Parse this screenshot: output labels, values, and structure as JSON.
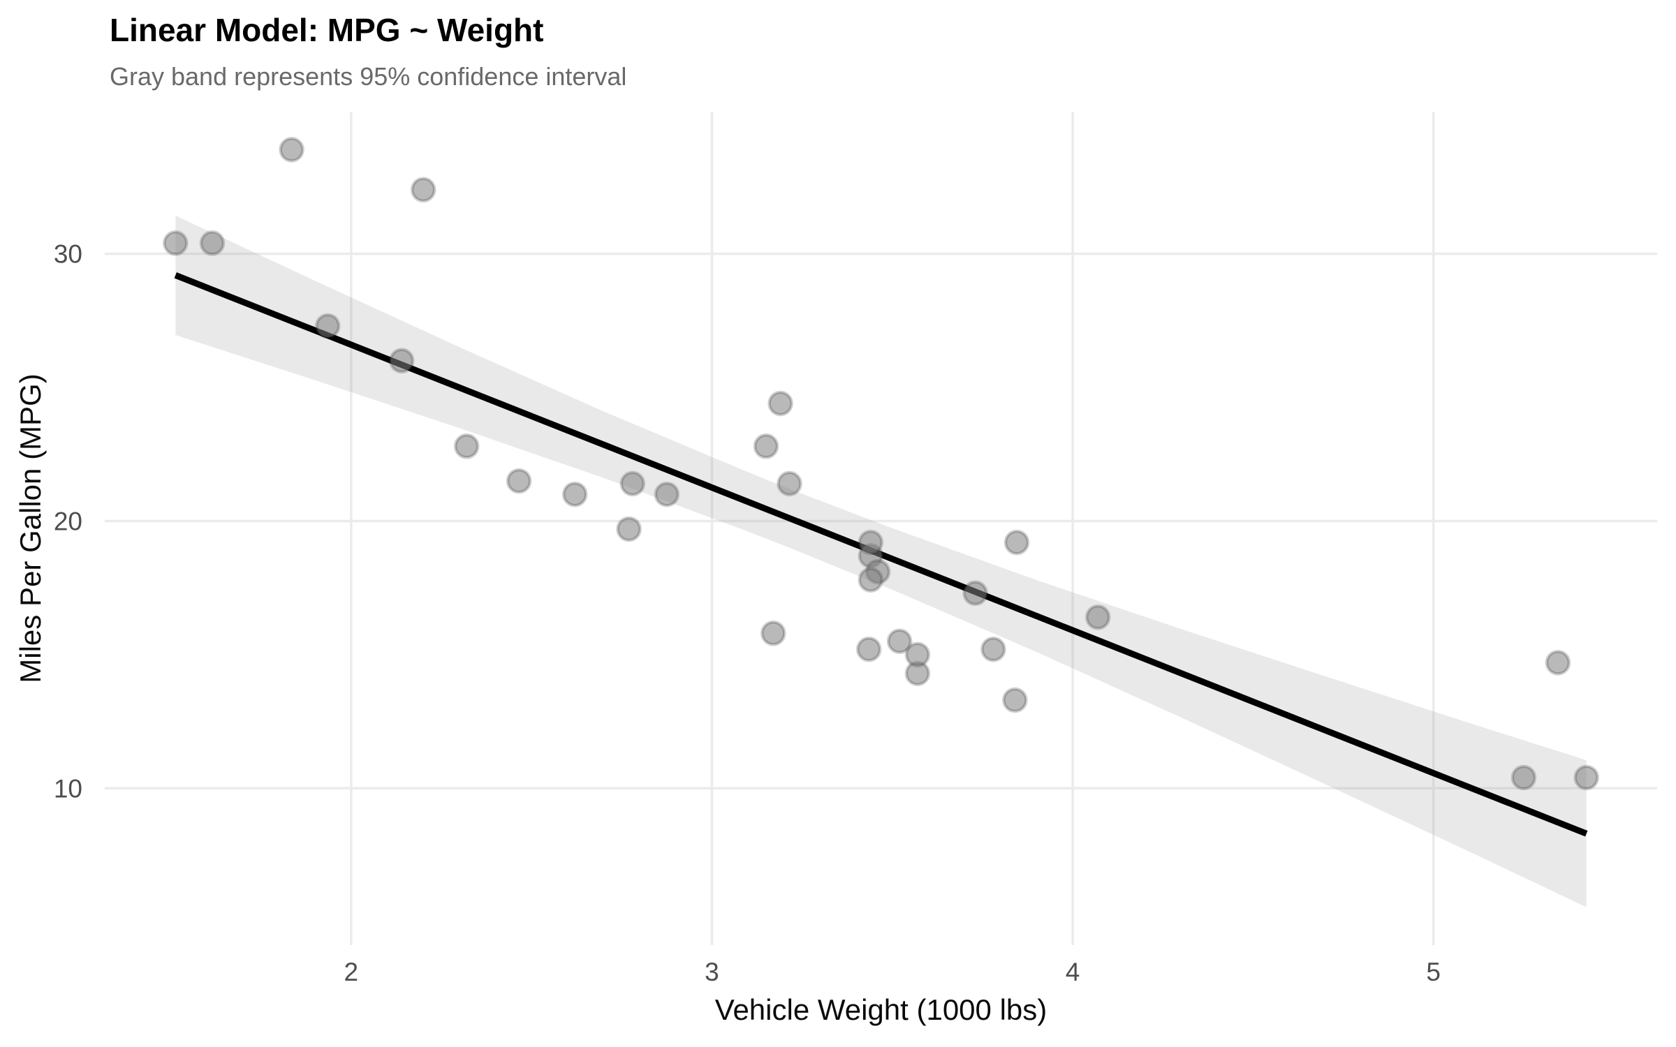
{
  "title": "Linear Model: MPG ~ Weight",
  "subtitle": "Gray band represents 95% confidence interval",
  "chart_data": {
    "type": "scatter",
    "title": "Linear Model: MPG ~ Weight",
    "subtitle": "Gray band represents 95% confidence interval",
    "xlabel": "Vehicle Weight (1000 lbs)",
    "ylabel": "Miles Per Gallon (MPG)",
    "xlim": [
      1.317,
      5.62
    ],
    "ylim": [
      4.13,
      35.32
    ],
    "x_ticks": [
      2,
      3,
      4,
      5
    ],
    "y_ticks": [
      10,
      20,
      30
    ],
    "grid": "major-only",
    "legend": "none",
    "points": [
      [
        2.62,
        21.0
      ],
      [
        2.875,
        21.0
      ],
      [
        2.32,
        22.8
      ],
      [
        3.215,
        21.4
      ],
      [
        3.44,
        18.7
      ],
      [
        3.46,
        18.1
      ],
      [
        3.57,
        14.3
      ],
      [
        3.19,
        24.4
      ],
      [
        3.15,
        22.8
      ],
      [
        3.44,
        19.2
      ],
      [
        3.44,
        17.8
      ],
      [
        4.07,
        16.4
      ],
      [
        3.73,
        17.3
      ],
      [
        3.78,
        15.2
      ],
      [
        5.25,
        10.4
      ],
      [
        5.424,
        10.4
      ],
      [
        5.345,
        14.7
      ],
      [
        2.2,
        32.4
      ],
      [
        1.615,
        30.4
      ],
      [
        1.835,
        33.9
      ],
      [
        2.465,
        21.5
      ],
      [
        3.52,
        15.5
      ],
      [
        3.435,
        15.2
      ],
      [
        3.84,
        13.3
      ],
      [
        3.845,
        19.2
      ],
      [
        1.935,
        27.3
      ],
      [
        2.14,
        26.0
      ],
      [
        1.513,
        30.4
      ],
      [
        3.17,
        15.8
      ],
      [
        2.77,
        19.7
      ],
      [
        3.57,
        15.0
      ],
      [
        2.78,
        21.4
      ]
    ],
    "regression_line": {
      "x": [
        1.513,
        5.424
      ],
      "y": [
        29.2,
        8.3
      ]
    },
    "confidence_band": {
      "level": "95%",
      "x": [
        1.513,
        1.9,
        2.3,
        2.7,
        3.1,
        3.217,
        3.5,
        3.9,
        4.3,
        4.7,
        5.1,
        5.424
      ],
      "upper": [
        31.43,
        28.99,
        26.51,
        24.1,
        21.83,
        21.19,
        19.73,
        17.79,
        15.96,
        14.19,
        12.44,
        11.05
      ],
      "lower": [
        26.96,
        25.27,
        23.48,
        21.61,
        19.61,
        18.99,
        17.43,
        15.1,
        12.65,
        10.15,
        7.62,
        5.55
      ]
    },
    "colors": {
      "point_fill": "#808080",
      "point_stroke": "#3c3c3c",
      "line": "#000000",
      "band": "#999999",
      "grid": "#ebebeb",
      "tick_text": "#4d4d4d",
      "subtitle_text": "#696969",
      "background": "#ffffff"
    }
  }
}
